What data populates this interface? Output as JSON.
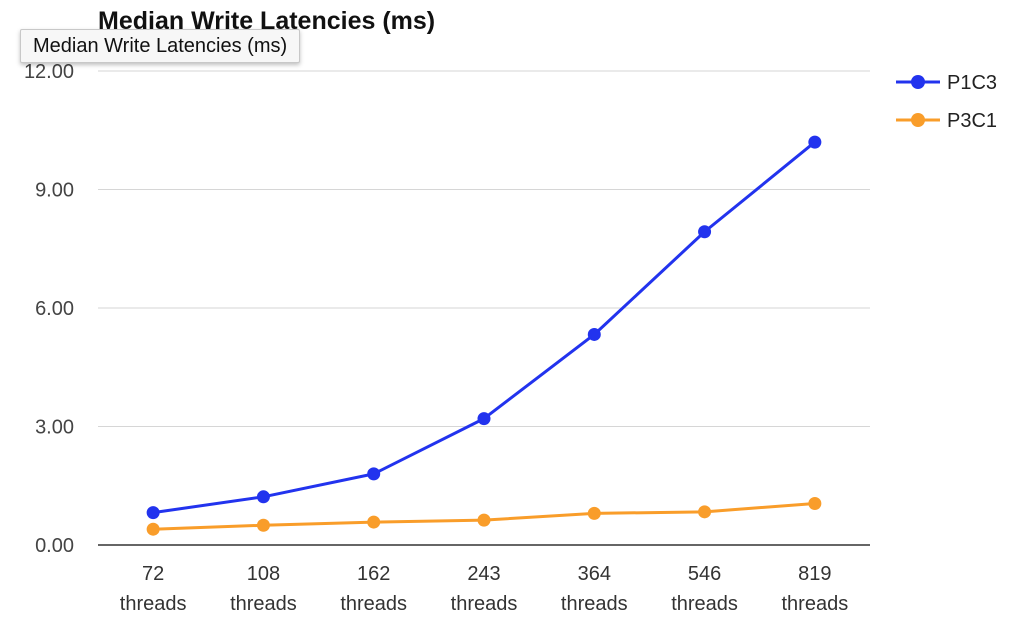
{
  "chart_data": {
    "type": "line",
    "title": "Median Write Latencies (ms)",
    "xlabel": "",
    "ylabel": "",
    "categories": [
      [
        "72",
        "threads"
      ],
      [
        "108",
        "threads"
      ],
      [
        "162",
        "threads"
      ],
      [
        "243",
        "threads"
      ],
      [
        "364",
        "threads"
      ],
      [
        "546",
        "threads"
      ],
      [
        "819",
        "threads"
      ]
    ],
    "yticks": [
      "0.00",
      "3.00",
      "6.00",
      "9.00",
      "12.00"
    ],
    "ylim": [
      0,
      12
    ],
    "grid": true,
    "legend_position": "right",
    "series": [
      {
        "name": "P1C3",
        "color": "#2233ee",
        "values": [
          0.82,
          1.22,
          1.8,
          3.2,
          5.33,
          7.93,
          10.2
        ]
      },
      {
        "name": "P3C1",
        "color": "#f99d2a",
        "values": [
          0.4,
          0.5,
          0.58,
          0.63,
          0.8,
          0.84,
          1.05
        ]
      }
    ]
  },
  "tooltip": {
    "text": "Median Write Latencies (ms)"
  }
}
